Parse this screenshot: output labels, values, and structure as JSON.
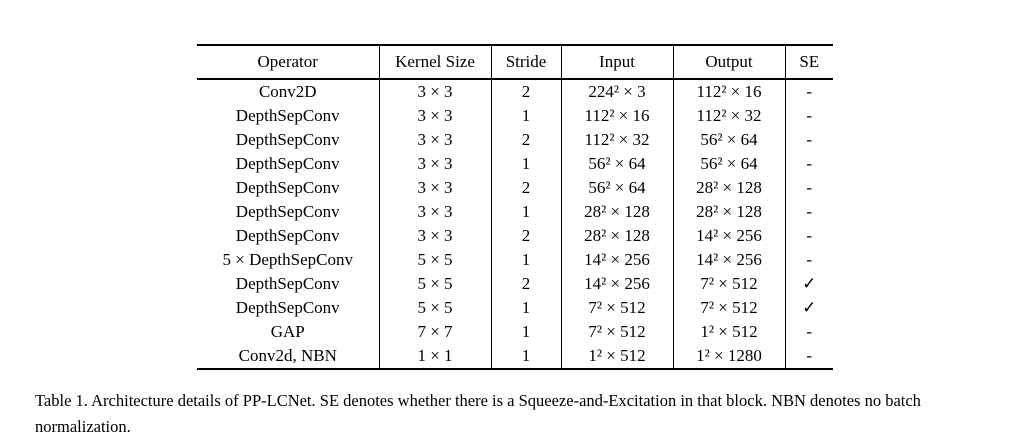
{
  "table": {
    "headers": [
      "Operator",
      "Kernel Size",
      "Stride",
      "Input",
      "Output",
      "SE"
    ],
    "rows": [
      [
        "Conv2D",
        "3 × 3",
        "2",
        "224² × 3",
        "112² × 16",
        "-"
      ],
      [
        "DepthSepConv",
        "3 × 3",
        "1",
        "112² × 16",
        "112² × 32",
        "-"
      ],
      [
        "DepthSepConv",
        "3 × 3",
        "2",
        "112² × 32",
        "56² × 64",
        "-"
      ],
      [
        "DepthSepConv",
        "3 × 3",
        "1",
        "56² × 64",
        "56² × 64",
        "-"
      ],
      [
        "DepthSepConv",
        "3 × 3",
        "2",
        "56² × 64",
        "28² × 128",
        "-"
      ],
      [
        "DepthSepConv",
        "3 × 3",
        "1",
        "28² × 128",
        "28² × 128",
        "-"
      ],
      [
        "DepthSepConv",
        "3 × 3",
        "2",
        "28² × 128",
        "14² × 256",
        "-"
      ],
      [
        "5 × DepthSepConv",
        "5 × 5",
        "1",
        "14² × 256",
        "14² × 256",
        "-"
      ],
      [
        "DepthSepConv",
        "5 × 5",
        "2",
        "14² × 256",
        "7² × 512",
        "✓"
      ],
      [
        "DepthSepConv",
        "5 × 5",
        "1",
        "7² × 512",
        "7² × 512",
        "✓"
      ],
      [
        "GAP",
        "7 × 7",
        "1",
        "7² × 512",
        "1² × 512",
        "-"
      ],
      [
        "Conv2d, NBN",
        "1 × 1",
        "1",
        "1² × 512",
        "1² × 1280",
        "-"
      ]
    ]
  },
  "caption": "Table 1. Architecture details of PP-LCNet. SE denotes whether there is a Squeeze-and-Excitation in that block. NBN denotes no batch normalization."
}
